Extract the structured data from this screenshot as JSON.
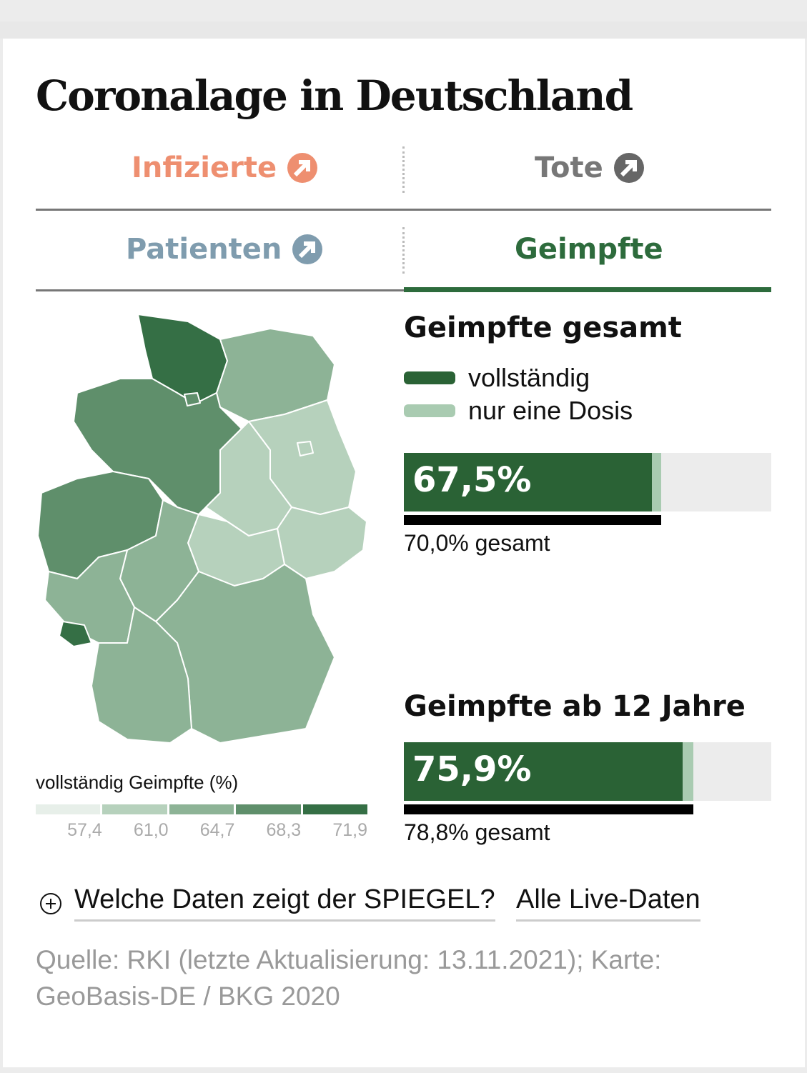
{
  "title": "Coronalage in Deutschland",
  "tabs": [
    {
      "label": "Infizierte",
      "color": "#ee8f70",
      "icon": "arrow-up-right-icon"
    },
    {
      "label": "Tote",
      "color": "#777777",
      "icon": "arrow-up-right-icon"
    },
    {
      "label": "Patienten",
      "color": "#7f9cae",
      "icon": "arrow-up-right-icon"
    },
    {
      "label": "Geimpfte",
      "color": "#2d6b3c",
      "active": true
    }
  ],
  "map": {
    "legend_title": "vollständig Geimpfte (%)",
    "legend_colors": [
      "#e7efe9",
      "#b6d1bc",
      "#8db396",
      "#5f8f6b",
      "#356f45"
    ],
    "legend_ticks": [
      "57,4",
      "61,0",
      "64,7",
      "68,3",
      "71,9"
    ]
  },
  "section1": {
    "heading": "Geimpfte gesamt",
    "key_full": "vollständig",
    "key_partial": "nur eine Dosis",
    "value_label": "67,5%",
    "full_pct": 67.5,
    "total_label": "70,0% gesamt",
    "total_pct": 70.0
  },
  "section2": {
    "heading": "Geimpfte ab 12 Jahre",
    "value_label": "75,9%",
    "full_pct": 75.9,
    "total_label": "78,8% gesamt",
    "total_pct": 78.8
  },
  "links": {
    "data_info": "Welche Daten zeigt der SPIEGEL?",
    "live": "Alle Live-Daten"
  },
  "source": "Quelle: RKI (letzte Aktualisierung: 13.11.2021); Karte: GeoBasis-DE / BKG 2020",
  "colors": {
    "full": "#2a6235",
    "partial": "#a9cbb1",
    "bar_bg": "#ececec"
  }
}
